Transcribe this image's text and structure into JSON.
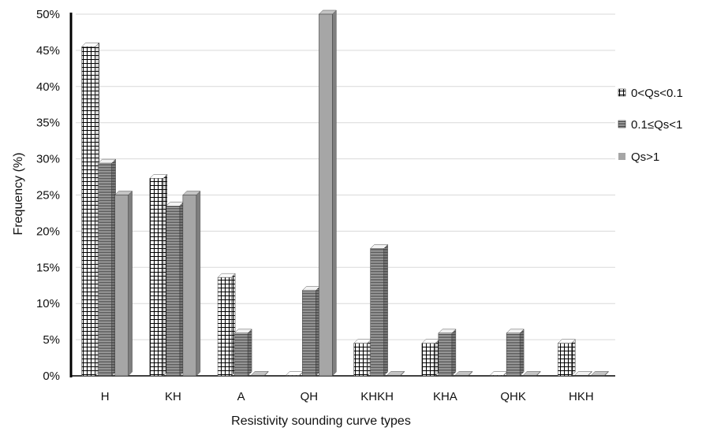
{
  "chart_data": {
    "type": "bar",
    "title": "",
    "xlabel": "Resistivity sounding curve types",
    "ylabel": "Frequency (%)",
    "categories": [
      "H",
      "KH",
      "A",
      "QH",
      "KHKH",
      "KHA",
      "QHK",
      "HKH"
    ],
    "y_ticks": [
      "0%",
      "5%",
      "10%",
      "15%",
      "20%",
      "25%",
      "30%",
      "35%",
      "40%",
      "45%",
      "50%"
    ],
    "ylim": [
      0,
      50
    ],
    "grid": true,
    "legend_position": "right",
    "series": [
      {
        "name": "0<Qs<0.1",
        "pattern": "grid",
        "values": [
          45.5,
          27.3,
          13.6,
          0,
          4.5,
          4.5,
          0,
          4.5
        ]
      },
      {
        "name": "0.1≤Qs<1",
        "pattern": "horizontal-lines",
        "values": [
          29.4,
          23.5,
          5.9,
          11.8,
          17.6,
          5.9,
          5.9,
          0
        ]
      },
      {
        "name": "Qs>1",
        "pattern": "solid-gray",
        "values": [
          25,
          25,
          0,
          50,
          0,
          0,
          0,
          0
        ]
      }
    ]
  }
}
